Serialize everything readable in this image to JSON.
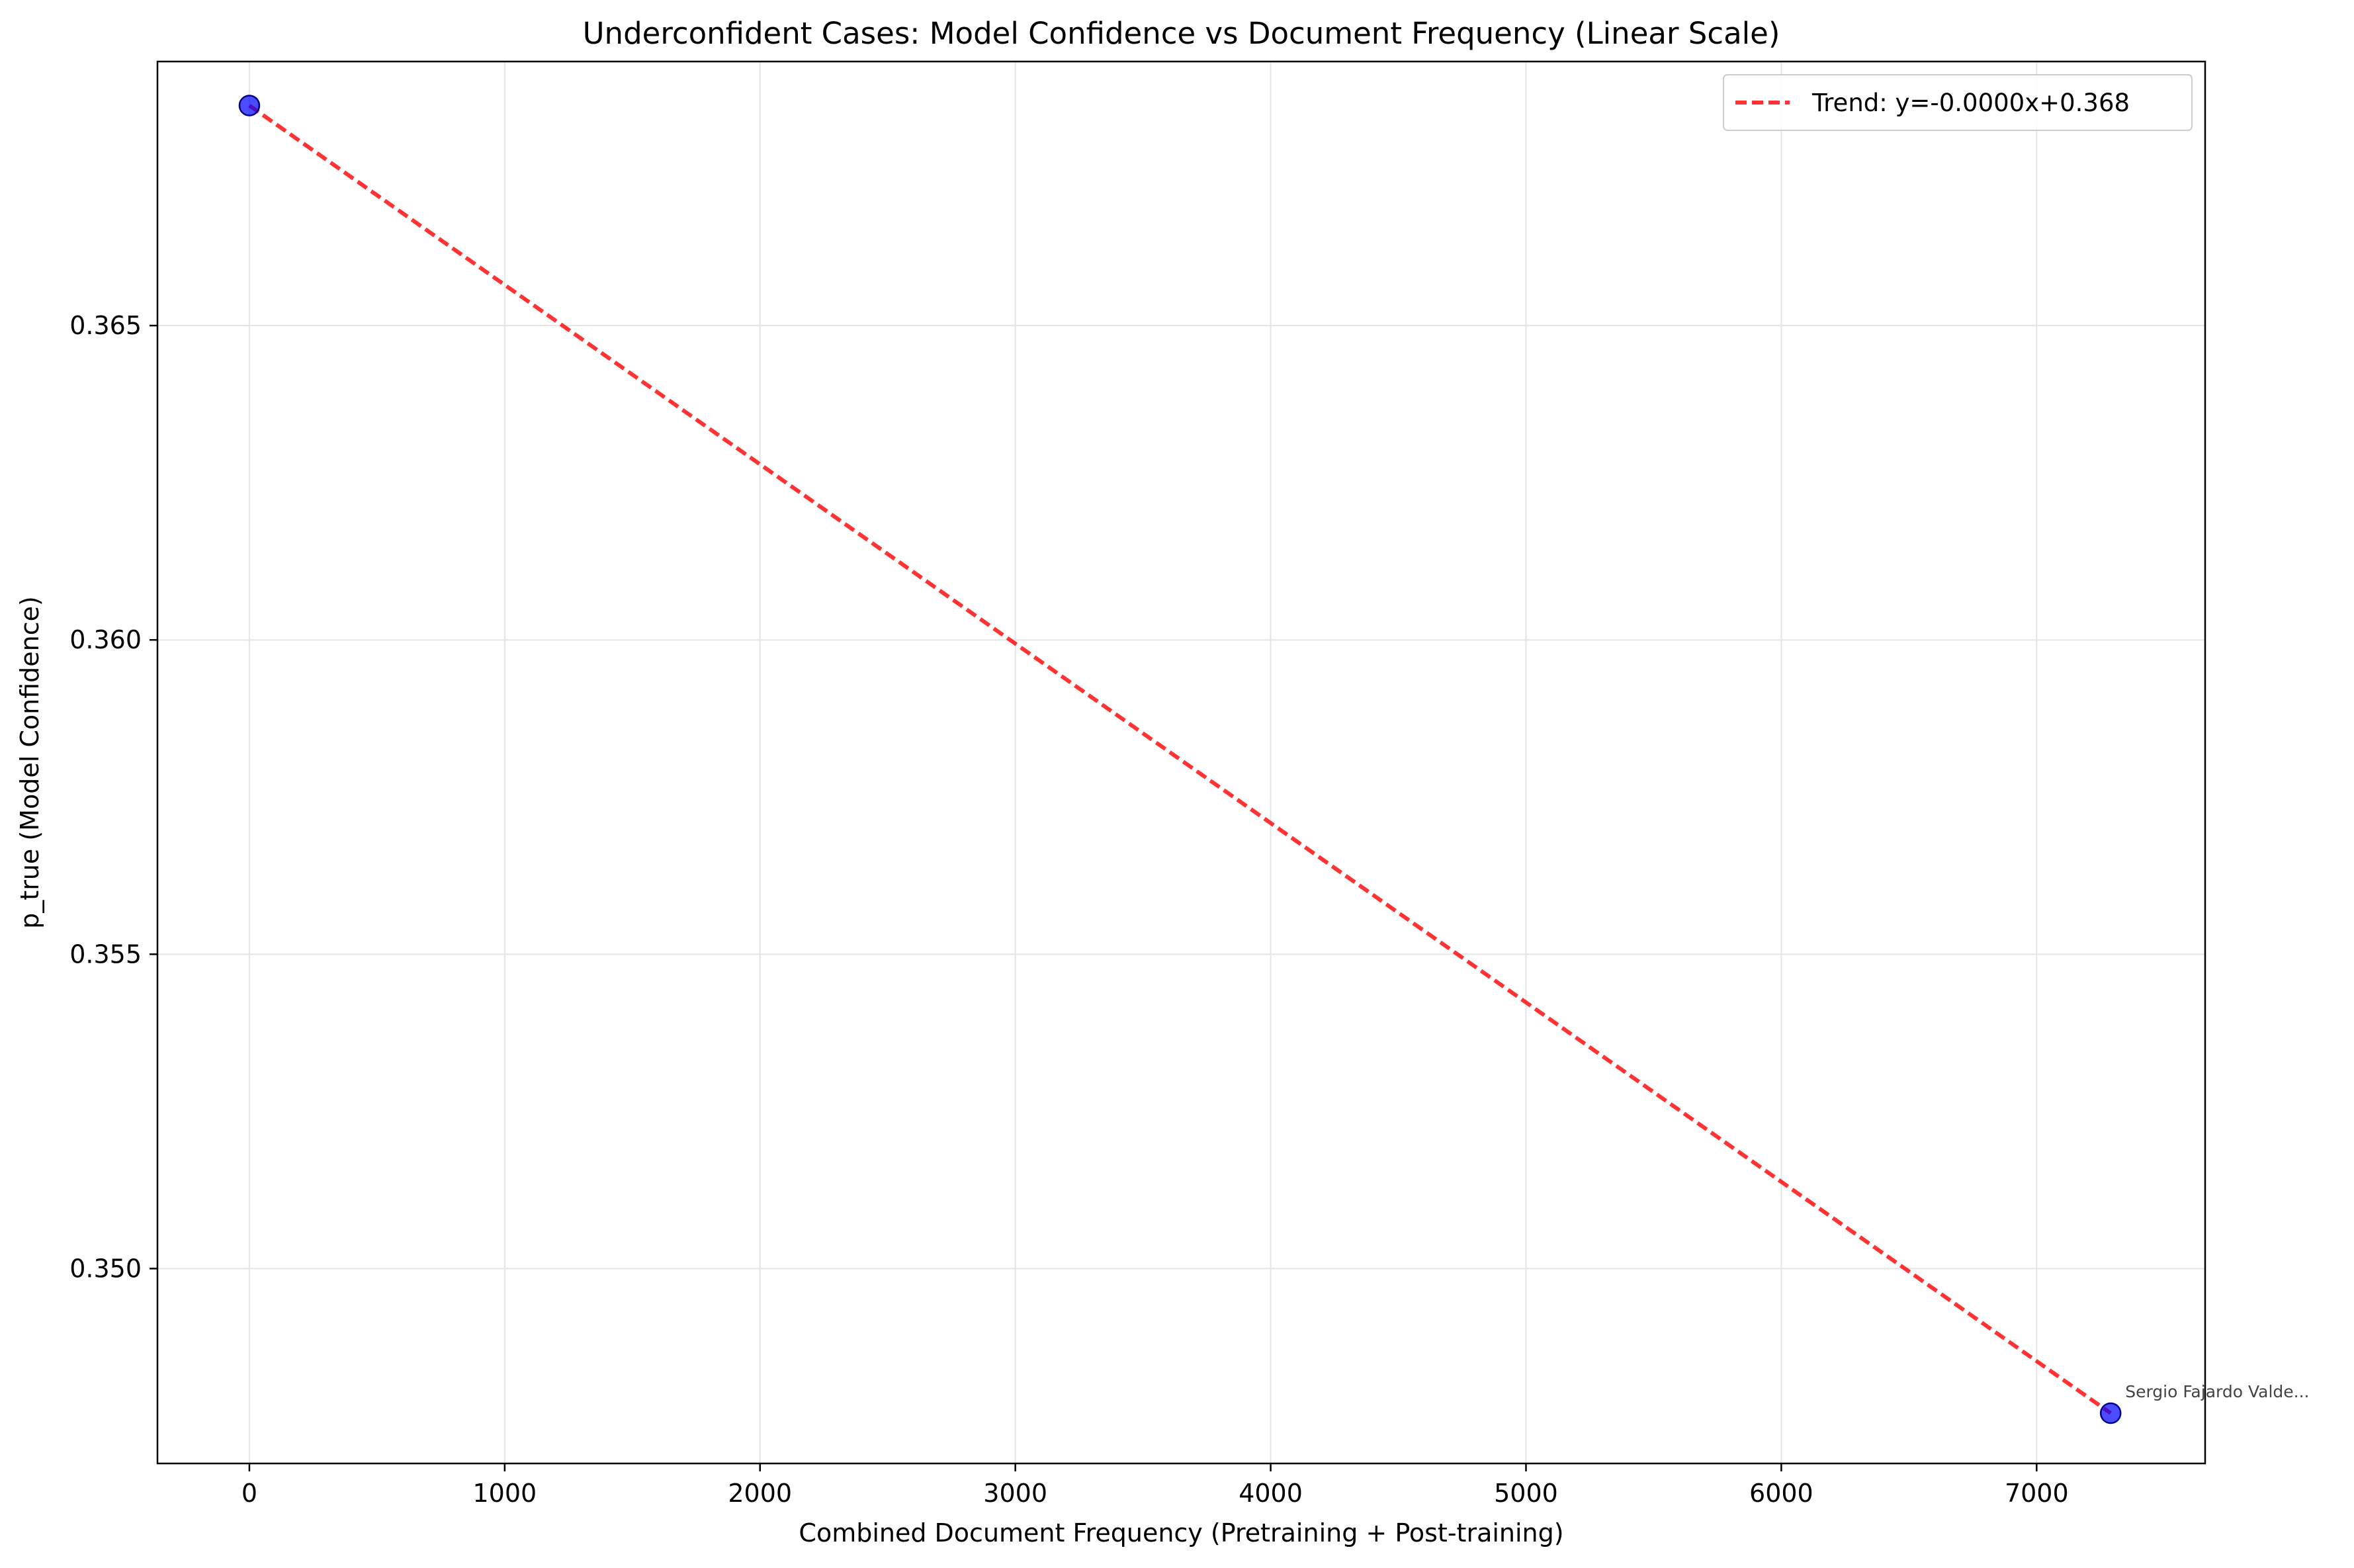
{
  "chart_data": {
    "type": "scatter",
    "title": "Underconfident Cases: Model Confidence vs Document Frequency (Linear Scale)",
    "xlabel": "Combined Document Frequency (Pretraining + Post-training)",
    "ylabel": "p_true (Model Confidence)",
    "xlim": [
      -360,
      7660
    ],
    "ylim": [
      0.3469,
      0.3692
    ],
    "xticks": [
      0,
      1000,
      2000,
      3000,
      4000,
      5000,
      6000,
      7000
    ],
    "xtick_labels": [
      "0",
      "1000",
      "2000",
      "3000",
      "4000",
      "5000",
      "6000",
      "7000"
    ],
    "yticks": [
      0.35,
      0.355,
      0.36,
      0.365
    ],
    "ytick_labels": [
      "0.350",
      "0.355",
      "0.360",
      "0.365"
    ],
    "grid": true,
    "legend_position": "top-right",
    "points": [
      {
        "x": 0,
        "y": 0.3685
      },
      {
        "x": 7290,
        "y": 0.3477
      }
    ],
    "annotations": [
      {
        "x": 7290,
        "y": 0.3477,
        "text": "Sergio Fajardo Valde..."
      }
    ],
    "trend_line": {
      "label": "Trend: y=-0.0000x+0.368",
      "x": [
        0,
        7290
      ],
      "y": [
        0.3685,
        0.3477
      ]
    },
    "colors": {
      "points": "#0000ff",
      "trend": "#ff0000",
      "grid": "#e5e5e5",
      "annotation": "#444444"
    }
  }
}
